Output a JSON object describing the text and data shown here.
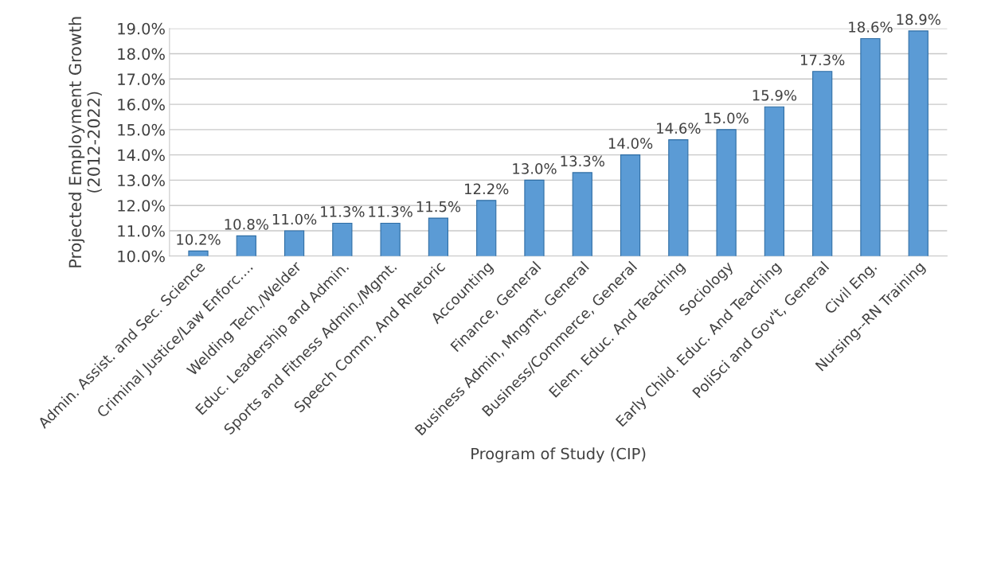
{
  "chart_data": {
    "type": "bar",
    "xlabel": "Program of Study (CIP)",
    "ylabel": "Projected Employment Growth\n(2012-2022)",
    "categories": [
      "Admin. Assist. and Sec. Science",
      "Criminal Justice/Law Enforc....",
      "Welding Tech./Welder",
      "Educ. Leadership and Admin.",
      "Sports and Fitness Admin./Mgmt.",
      "Speech Comm. And Rhetoric",
      "Accounting",
      "Finance, General",
      "Business Admin, Mngmt, General",
      "Business/Commerce, General",
      "Elem. Educ. And Teaching",
      "Sociology",
      "Early Child. Educ. And Teaching",
      "PoliSci and Gov't, General",
      "Civil Eng.",
      "Nursing--RN Training"
    ],
    "values": [
      10.2,
      10.8,
      11.0,
      11.3,
      11.3,
      11.5,
      12.2,
      13.0,
      13.3,
      14.0,
      14.6,
      15.0,
      15.9,
      17.3,
      18.6,
      18.9
    ],
    "value_labels": [
      "10.2%",
      "10.8%",
      "11.0%",
      "11.3%",
      "11.3%",
      "11.5%",
      "12.2%",
      "13.0%",
      "13.3%",
      "14.0%",
      "14.6%",
      "15.0%",
      "15.9%",
      "17.3%",
      "18.6%",
      "18.9%"
    ],
    "color": "#5b9bd5",
    "ylim": [
      10,
      19
    ],
    "yticks": [
      {
        "value": 10,
        "label": "10.0%"
      },
      {
        "value": 11,
        "label": "11.0%"
      },
      {
        "value": 12,
        "label": "12.0%"
      },
      {
        "value": 13,
        "label": "13.0%"
      },
      {
        "value": 14,
        "label": "14.0%"
      },
      {
        "value": 15,
        "label": "15.0%"
      },
      {
        "value": 16,
        "label": "16.0%"
      },
      {
        "value": 17,
        "label": "17.0%"
      },
      {
        "value": 18,
        "label": "18.0%"
      },
      {
        "value": 19,
        "label": "19.0%"
      }
    ],
    "grid": "y"
  }
}
